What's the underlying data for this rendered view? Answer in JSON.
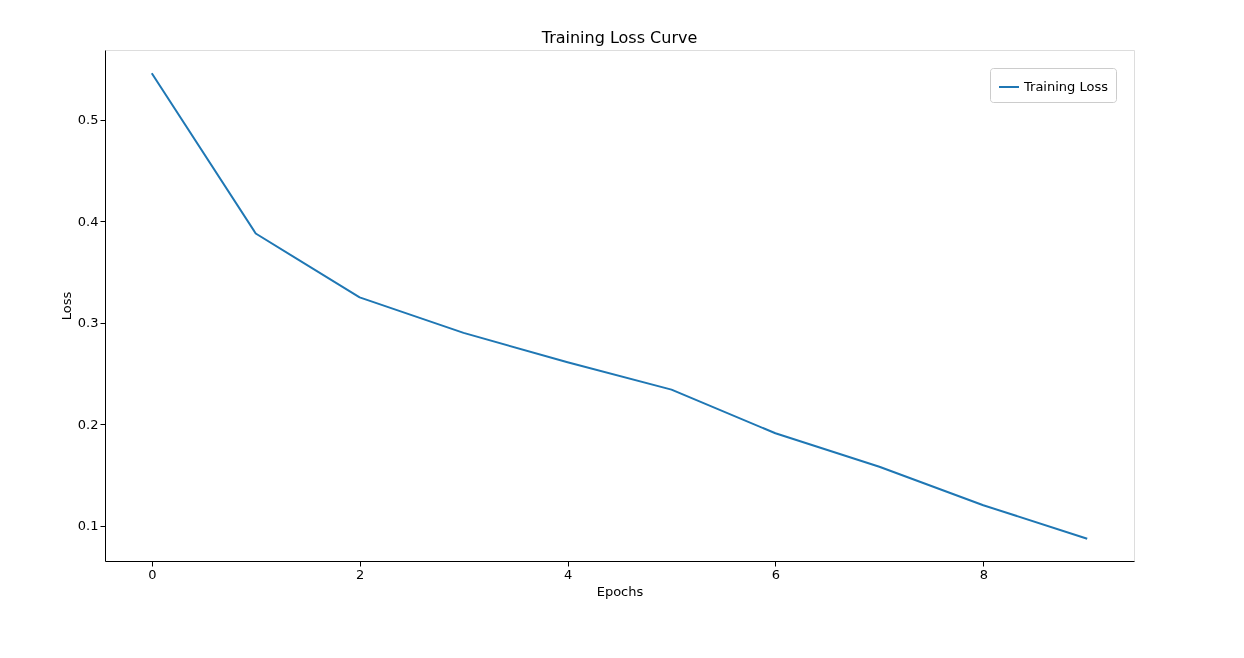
{
  "chart_data": {
    "type": "line",
    "title": "Training Loss Curve",
    "xlabel": "Epochs",
    "ylabel": "Loss",
    "x": [
      0,
      1,
      2,
      3,
      4,
      5,
      6,
      7,
      8,
      9
    ],
    "series": [
      {
        "name": "Training Loss",
        "color": "#1f77b4",
        "values": [
          0.546,
          0.388,
          0.325,
          0.29,
          0.261,
          0.234,
          0.191,
          0.158,
          0.12,
          0.087
        ]
      }
    ],
    "xlim": [
      -0.45,
      9.45
    ],
    "ylim": [
      0.065,
      0.569
    ],
    "xticks": [
      0,
      2,
      4,
      6,
      8
    ],
    "yticks": [
      0.1,
      0.2,
      0.3,
      0.4,
      0.5
    ],
    "grid": false,
    "legend": "top right",
    "marker": "none",
    "line_style": "solid"
  }
}
